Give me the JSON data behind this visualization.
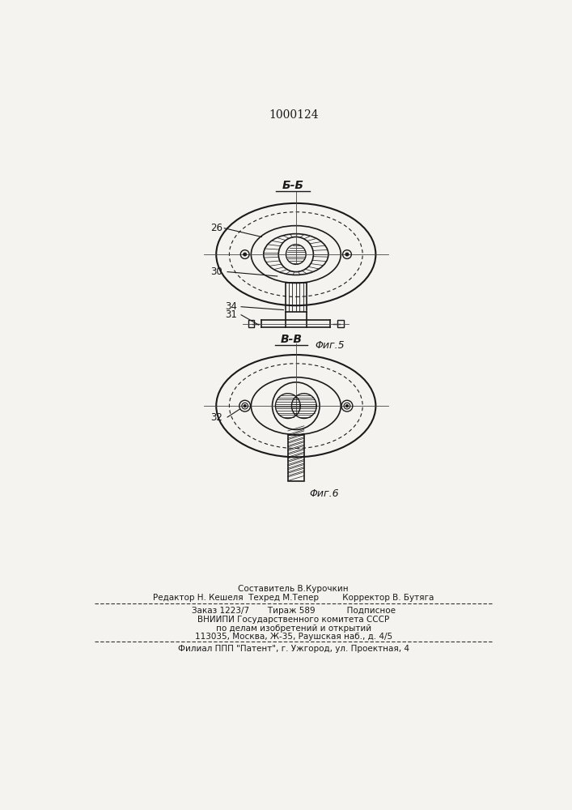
{
  "bg_color": "#f5f3f0",
  "line_color": "#1a1a1a",
  "title_text": "1000124",
  "fig5_label": "Б-Б",
  "fig5_caption": "Φиг.5",
  "fig6_label": "В-В",
  "fig6_caption": "Φиг.6",
  "label_26": "26",
  "label_30": "30",
  "label_34": "34",
  "label_31": "31",
  "label_32": "32",
  "footer_line1": "Составитель В.Курочкин",
  "footer_line2": "Редактор Н. Кешеля  Техред М.Тепер         Корректор В. Бутяга",
  "footer_line3": "Заказ 1223/7       Тираж 589            Подписное",
  "footer_line4": "ВНИИПИ Государственного комитета СССР",
  "footer_line5": "по делам изобретений и открытий",
  "footer_line6": "113035, Москва, Ж-35, Раушская наб., д. 4/5",
  "footer_line7": "Филиал ППП \"Патент\", г. Ужгород, ул. Проектная, 4"
}
